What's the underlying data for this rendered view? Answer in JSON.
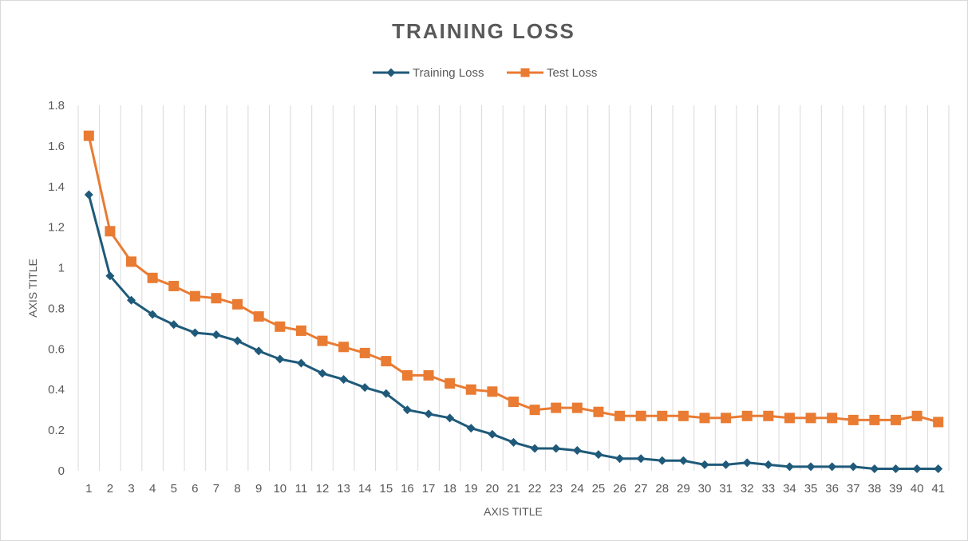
{
  "colors": {
    "training": "#1f5a7a",
    "test": "#e97b33",
    "grid": "#d9d9d9",
    "text": "#595959"
  },
  "chart_data": {
    "type": "line",
    "title": "TRAINING LOSS",
    "xlabel": "AXIS TITLE",
    "ylabel": "AXIS TITLE",
    "ylim": [
      0,
      1.8
    ],
    "y_ticks": [
      "0",
      "0.2",
      "0.4",
      "0.6",
      "0.8",
      "1",
      "1.2",
      "1.4",
      "1.6",
      "1.8"
    ],
    "y_tick_values": [
      0,
      0.2,
      0.4,
      0.6,
      0.8,
      1.0,
      1.2,
      1.4,
      1.6,
      1.8
    ],
    "grid": "vertical",
    "legend_position": "top",
    "categories": [
      "1",
      "2",
      "3",
      "4",
      "5",
      "6",
      "7",
      "8",
      "9",
      "10",
      "11",
      "12",
      "13",
      "14",
      "15",
      "16",
      "17",
      "18",
      "19",
      "20",
      "21",
      "22",
      "23",
      "24",
      "25",
      "26",
      "27",
      "28",
      "29",
      "30",
      "31",
      "32",
      "33",
      "34",
      "35",
      "36",
      "37",
      "38",
      "39",
      "40",
      "41"
    ],
    "series": [
      {
        "name": "Training Loss",
        "marker": "diamond",
        "values": [
          1.36,
          0.96,
          0.84,
          0.77,
          0.72,
          0.68,
          0.67,
          0.64,
          0.59,
          0.55,
          0.53,
          0.48,
          0.45,
          0.41,
          0.38,
          0.3,
          0.28,
          0.26,
          0.21,
          0.18,
          0.14,
          0.11,
          0.11,
          0.1,
          0.08,
          0.06,
          0.06,
          0.05,
          0.05,
          0.03,
          0.03,
          0.04,
          0.03,
          0.02,
          0.02,
          0.02,
          0.02,
          0.01,
          0.01,
          0.01,
          0.01
        ]
      },
      {
        "name": "Test Loss",
        "marker": "square",
        "values": [
          1.65,
          1.18,
          1.03,
          0.95,
          0.91,
          0.86,
          0.85,
          0.82,
          0.76,
          0.71,
          0.69,
          0.64,
          0.61,
          0.58,
          0.54,
          0.47,
          0.47,
          0.43,
          0.4,
          0.39,
          0.34,
          0.3,
          0.31,
          0.31,
          0.29,
          0.27,
          0.27,
          0.27,
          0.27,
          0.26,
          0.26,
          0.27,
          0.27,
          0.26,
          0.26,
          0.26,
          0.25,
          0.25,
          0.25,
          0.27,
          0.24
        ]
      }
    ]
  }
}
